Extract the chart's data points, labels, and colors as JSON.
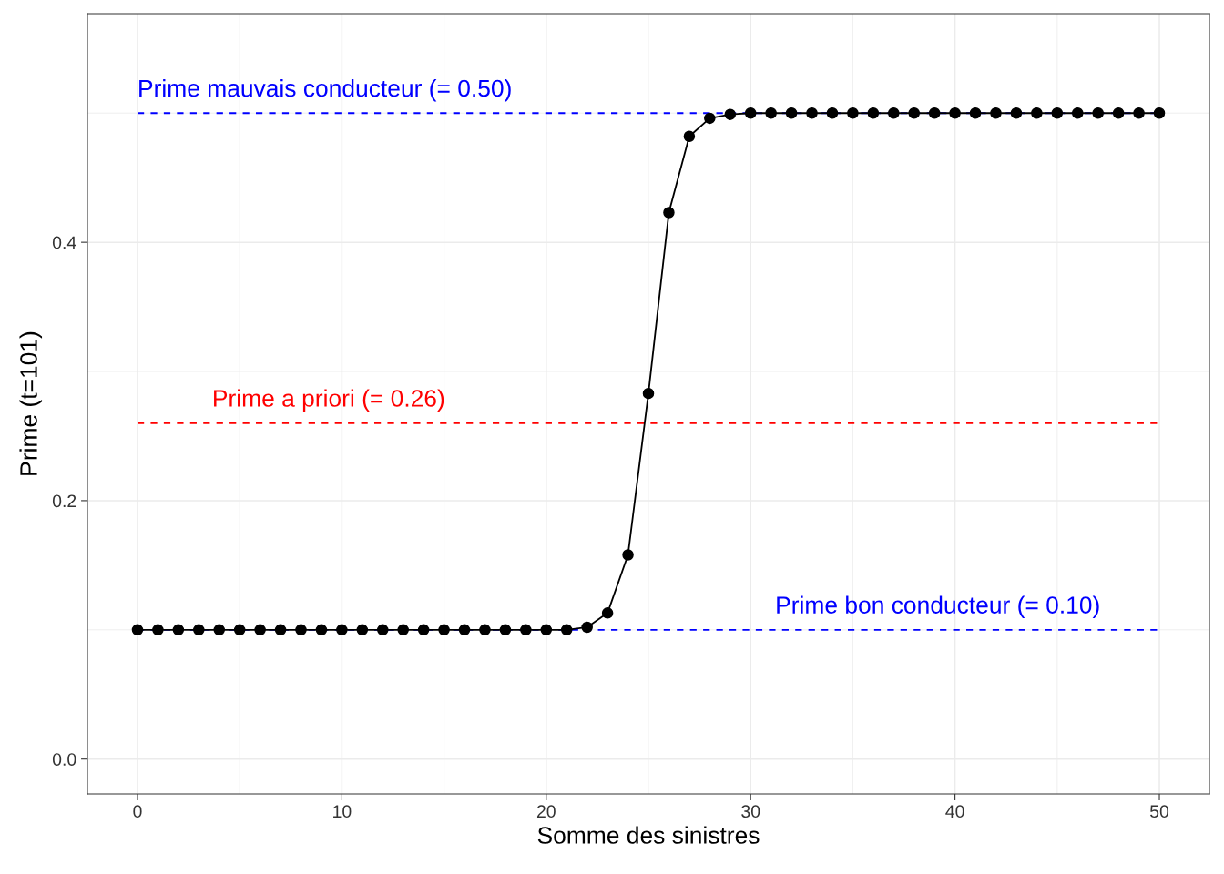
{
  "chart_data": {
    "type": "line",
    "xlabel": "Somme des sinistres",
    "ylabel": "Prime (t=101)",
    "x": [
      0,
      1,
      2,
      3,
      4,
      5,
      6,
      7,
      8,
      9,
      10,
      11,
      12,
      13,
      14,
      15,
      16,
      17,
      18,
      19,
      20,
      21,
      22,
      23,
      24,
      25,
      26,
      27,
      28,
      29,
      30,
      31,
      32,
      33,
      34,
      35,
      36,
      37,
      38,
      39,
      40,
      41,
      42,
      43,
      44,
      45,
      46,
      47,
      48,
      49,
      50
    ],
    "series": [
      {
        "color": "#000000",
        "values": [
          0.1,
          0.1,
          0.1,
          0.1,
          0.1,
          0.1,
          0.1,
          0.1,
          0.1,
          0.1,
          0.1,
          0.1,
          0.1,
          0.1,
          0.1,
          0.1,
          0.1,
          0.1,
          0.1,
          0.1,
          0.1,
          0.1,
          0.102,
          0.113,
          0.158,
          0.283,
          0.423,
          0.482,
          0.496,
          0.499,
          0.5,
          0.5,
          0.5,
          0.5,
          0.5,
          0.5,
          0.5,
          0.5,
          0.5,
          0.5,
          0.5,
          0.5,
          0.5,
          0.5,
          0.5,
          0.5,
          0.5,
          0.5,
          0.5,
          0.5,
          0.5
        ]
      }
    ],
    "marker": "circle",
    "line_style": "solid",
    "grid": true,
    "xlim": [
      -2.45,
      52.45
    ],
    "xticks": [
      0,
      10,
      20,
      30,
      40,
      50
    ],
    "ylim": [
      -0.027,
      0.577
    ],
    "yticks": [
      {
        "value": 0,
        "label": "0.0"
      },
      {
        "value": 0.2,
        "label": "0.2"
      },
      {
        "value": 0.4,
        "label": "0.4"
      }
    ],
    "ref_lines": [
      {
        "axis": "y",
        "value": 0.5,
        "color": "#0000ff",
        "line_style": "dashed",
        "label": "Prime mauvais conducteur (= 0.50)"
      },
      {
        "axis": "y",
        "value": 0.26,
        "color": "#ff0000",
        "line_style": "dashed",
        "label": "Prime a priori (= 0.26)"
      },
      {
        "axis": "y",
        "value": 0.1,
        "color": "#0000ff",
        "line_style": "dashed",
        "label": "Prime bon conducteur (= 0.10)"
      }
    ]
  }
}
